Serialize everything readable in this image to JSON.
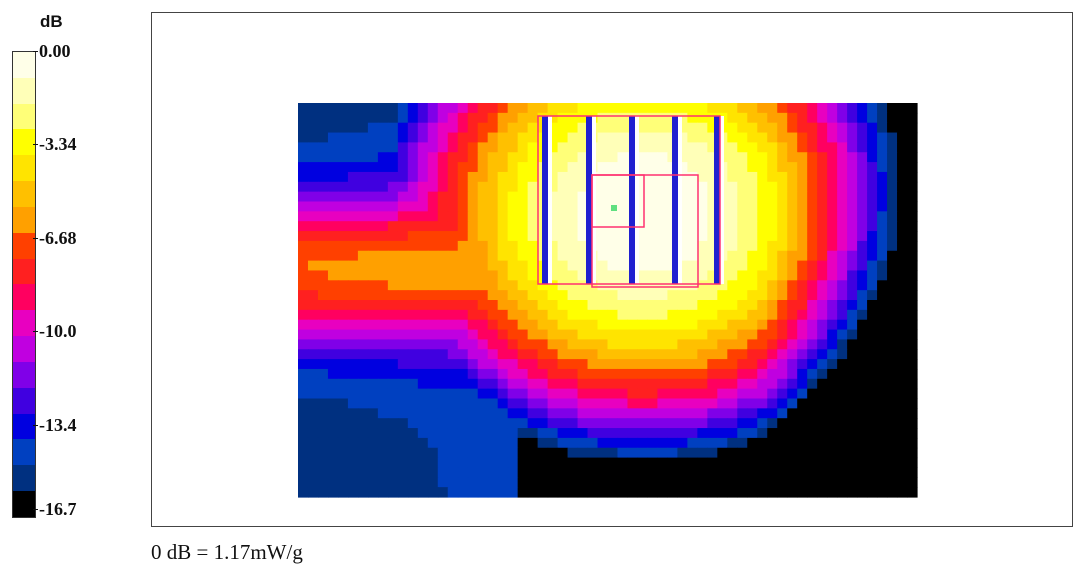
{
  "chart_data": {
    "type": "heatmap",
    "colorbar": {
      "unit": "dB",
      "labels": [
        "0.00",
        "-3.34",
        "-6.68",
        "-10.0",
        "-13.4",
        "-16.7"
      ],
      "range": [
        -16.7,
        0.0
      ],
      "levels": [
        "#ffffe8",
        "#ffffb8",
        "#ffff78",
        "#ffff00",
        "#ffe400",
        "#ffc000",
        "#ffa000",
        "#ff4000",
        "#ff2020",
        "#ff0060",
        "#e800c0",
        "#c000e0",
        "#8000e8",
        "#4000e0",
        "#0000e0",
        "#0040c0",
        "#003080",
        "#000000"
      ]
    },
    "field": {
      "nx": 62,
      "ny": 40,
      "xlim": [
        0,
        1
      ],
      "ylim": [
        0,
        1
      ],
      "peak": [
        0.56,
        0.28
      ],
      "peak_db": 0.0,
      "min_db": -16.7
    },
    "footnote": "0 dB = 1.17mW/g"
  }
}
